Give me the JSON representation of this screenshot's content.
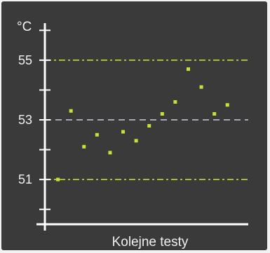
{
  "chart_data": {
    "type": "scatter",
    "ylabel": "°C",
    "xlabel": "Kolejne testy",
    "ylim": [
      49.5,
      56.5
    ],
    "xlim": [
      0,
      15.6
    ],
    "y_ticks": [
      50,
      51,
      52,
      53,
      54,
      55,
      56
    ],
    "y_tick_labels": [
      "51",
      "53",
      "55"
    ],
    "y_tick_label_values": [
      51,
      53,
      55
    ],
    "reference_lines": [
      {
        "y": 55,
        "style": "dash-dot",
        "color": "#c8d834"
      },
      {
        "y": 53,
        "style": "dashed",
        "color": "#c9c9de"
      },
      {
        "y": 51,
        "style": "dash-dot",
        "color": "#c8d834"
      }
    ],
    "points": [
      {
        "x": 1,
        "y": 51.0
      },
      {
        "x": 2,
        "y": 53.3
      },
      {
        "x": 3,
        "y": 52.1
      },
      {
        "x": 4,
        "y": 52.5
      },
      {
        "x": 5,
        "y": 51.9
      },
      {
        "x": 6,
        "y": 52.6
      },
      {
        "x": 7,
        "y": 52.3
      },
      {
        "x": 8,
        "y": 52.8
      },
      {
        "x": 9,
        "y": 53.2
      },
      {
        "x": 10,
        "y": 53.6
      },
      {
        "x": 11,
        "y": 54.7
      },
      {
        "x": 12,
        "y": 54.1
      },
      {
        "x": 13,
        "y": 53.2
      },
      {
        "x": 14,
        "y": 53.5
      }
    ],
    "point_color": "#c8e03a",
    "grid": false
  }
}
